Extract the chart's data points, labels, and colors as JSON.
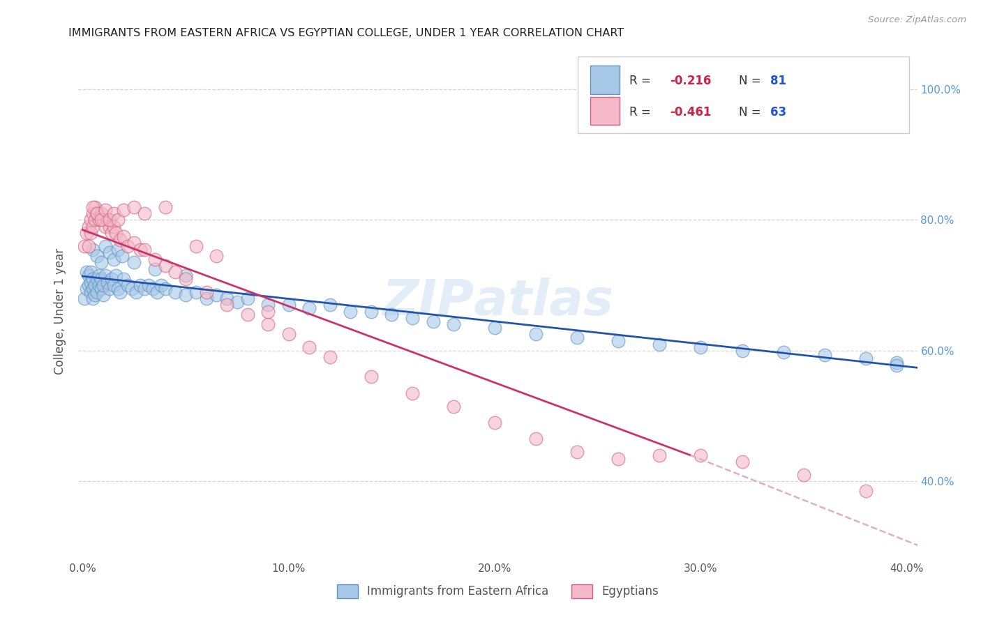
{
  "title": "IMMIGRANTS FROM EASTERN AFRICA VS EGYPTIAN COLLEGE, UNDER 1 YEAR CORRELATION CHART",
  "source": "Source: ZipAtlas.com",
  "ylabel": "College, Under 1 year",
  "xlim": [
    -0.002,
    0.405
  ],
  "ylim": [
    0.28,
    1.07
  ],
  "xtick_vals": [
    0.0,
    0.1,
    0.2,
    0.3,
    0.4
  ],
  "xtick_labels": [
    "0.0%",
    "10.0%",
    "20.0%",
    "30.0%",
    "40.0%"
  ],
  "ytick_vals": [
    0.4,
    0.6,
    0.8,
    1.0
  ],
  "ytick_labels": [
    "40.0%",
    "60.0%",
    "80.0%",
    "100.0%"
  ],
  "legend_blue_r": "R = -0.216",
  "legend_blue_n": "N = 81",
  "legend_pink_r": "R = -0.461",
  "legend_pink_n": "N = 63",
  "legend_bottom_blue": "Immigrants from Eastern Africa",
  "legend_bottom_pink": "Egyptians",
  "blue_fill": "#a8c8e8",
  "pink_fill": "#f4b8c8",
  "blue_edge": "#6090c0",
  "pink_edge": "#d06080",
  "blue_line_color": "#2255aa",
  "pink_line_color": "#cc3366",
  "pink_dash_color": "#e0b0c0",
  "r_color": "#cc2244",
  "n_color": "#2255cc",
  "ytick_color": "#5599dd",
  "watermark_color": "#c8ddf0",
  "watermark_alpha": 0.5,
  "blue_x": [
    0.001,
    0.002,
    0.002,
    0.003,
    0.003,
    0.004,
    0.004,
    0.004,
    0.005,
    0.005,
    0.005,
    0.006,
    0.006,
    0.007,
    0.007,
    0.008,
    0.008,
    0.009,
    0.009,
    0.01,
    0.01,
    0.011,
    0.012,
    0.013,
    0.014,
    0.015,
    0.016,
    0.017,
    0.018,
    0.02,
    0.022,
    0.024,
    0.026,
    0.028,
    0.03,
    0.032,
    0.034,
    0.036,
    0.038,
    0.04,
    0.045,
    0.05,
    0.055,
    0.06,
    0.065,
    0.07,
    0.075,
    0.08,
    0.09,
    0.1,
    0.11,
    0.12,
    0.13,
    0.14,
    0.15,
    0.16,
    0.17,
    0.18,
    0.2,
    0.22,
    0.24,
    0.26,
    0.28,
    0.3,
    0.32,
    0.34,
    0.36,
    0.38,
    0.395,
    0.395,
    0.005,
    0.007,
    0.009,
    0.011,
    0.013,
    0.015,
    0.017,
    0.019,
    0.025,
    0.035,
    0.05
  ],
  "blue_y": [
    0.68,
    0.695,
    0.72,
    0.7,
    0.715,
    0.69,
    0.705,
    0.72,
    0.68,
    0.695,
    0.71,
    0.685,
    0.7,
    0.69,
    0.71,
    0.7,
    0.715,
    0.695,
    0.71,
    0.685,
    0.7,
    0.715,
    0.705,
    0.695,
    0.71,
    0.7,
    0.715,
    0.695,
    0.69,
    0.71,
    0.7,
    0.695,
    0.69,
    0.7,
    0.695,
    0.7,
    0.695,
    0.69,
    0.7,
    0.695,
    0.69,
    0.685,
    0.69,
    0.68,
    0.685,
    0.68,
    0.675,
    0.68,
    0.67,
    0.67,
    0.665,
    0.67,
    0.66,
    0.66,
    0.655,
    0.65,
    0.645,
    0.64,
    0.635,
    0.625,
    0.62,
    0.615,
    0.61,
    0.605,
    0.6,
    0.598,
    0.593,
    0.588,
    0.582,
    0.578,
    0.755,
    0.745,
    0.735,
    0.76,
    0.75,
    0.74,
    0.755,
    0.745,
    0.735,
    0.725,
    0.715
  ],
  "pink_x": [
    0.001,
    0.002,
    0.003,
    0.003,
    0.004,
    0.004,
    0.005,
    0.005,
    0.006,
    0.006,
    0.007,
    0.008,
    0.009,
    0.01,
    0.011,
    0.012,
    0.013,
    0.014,
    0.015,
    0.016,
    0.018,
    0.02,
    0.022,
    0.025,
    0.028,
    0.03,
    0.035,
    0.04,
    0.045,
    0.05,
    0.06,
    0.07,
    0.08,
    0.09,
    0.1,
    0.11,
    0.12,
    0.14,
    0.16,
    0.18,
    0.2,
    0.22,
    0.24,
    0.26,
    0.28,
    0.3,
    0.32,
    0.35,
    0.38,
    0.005,
    0.007,
    0.009,
    0.011,
    0.013,
    0.015,
    0.017,
    0.02,
    0.025,
    0.03,
    0.04,
    0.055,
    0.065,
    0.09
  ],
  "pink_y": [
    0.76,
    0.78,
    0.76,
    0.79,
    0.78,
    0.8,
    0.79,
    0.81,
    0.8,
    0.82,
    0.81,
    0.8,
    0.81,
    0.8,
    0.79,
    0.8,
    0.79,
    0.78,
    0.79,
    0.78,
    0.77,
    0.775,
    0.76,
    0.765,
    0.755,
    0.755,
    0.74,
    0.73,
    0.72,
    0.71,
    0.69,
    0.67,
    0.655,
    0.64,
    0.625,
    0.605,
    0.59,
    0.56,
    0.535,
    0.515,
    0.49,
    0.465,
    0.445,
    0.435,
    0.44,
    0.44,
    0.43,
    0.41,
    0.385,
    0.82,
    0.81,
    0.8,
    0.815,
    0.8,
    0.81,
    0.8,
    0.815,
    0.82,
    0.81,
    0.82,
    0.76,
    0.745,
    0.66
  ],
  "blue_line": [
    0.0,
    0.405,
    0.714,
    0.574
  ],
  "pink_line_solid": [
    0.0,
    0.295,
    0.785,
    0.44
  ],
  "pink_line_dash": [
    0.295,
    0.415,
    0.44,
    0.29
  ]
}
